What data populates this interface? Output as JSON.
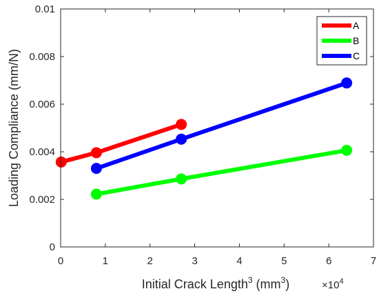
{
  "chart_data": {
    "type": "line",
    "xlabel": {
      "main": "Initial Crack Length",
      "sup1": "3",
      "paren_open": " (mm",
      "sup2": "3",
      "paren_close": ")"
    },
    "ylabel": "Loading Compliance (mm/N)",
    "x_multiplier": {
      "base": "×10",
      "exp": "4"
    },
    "xlim": [
      0,
      7
    ],
    "ylim": [
      0,
      0.01
    ],
    "xticks": [
      0,
      1,
      2,
      3,
      4,
      5,
      6,
      7
    ],
    "xtick_labels": [
      "0",
      "1",
      "2",
      "3",
      "4",
      "5",
      "6",
      "7"
    ],
    "yticks": [
      0,
      0.002,
      0.004,
      0.006,
      0.008,
      0.01
    ],
    "ytick_labels": [
      "0",
      "0.002",
      "0.004",
      "0.006",
      "0.008",
      "0.01"
    ],
    "legend_position": "top-right",
    "series": [
      {
        "name": "A",
        "color": "#ff0000",
        "points": [
          [
            0.0125,
            0.00357
          ],
          [
            0.8,
            0.00396
          ],
          [
            2.7,
            0.00515
          ]
        ]
      },
      {
        "name": "B",
        "color": "#00ff00",
        "points": [
          [
            0.8,
            0.00222
          ],
          [
            2.7,
            0.00286
          ],
          [
            6.4,
            0.00406
          ]
        ]
      },
      {
        "name": "C",
        "color": "#0000ff",
        "points": [
          [
            0.8,
            0.0033
          ],
          [
            2.7,
            0.00453
          ],
          [
            6.4,
            0.00689
          ]
        ]
      }
    ]
  }
}
